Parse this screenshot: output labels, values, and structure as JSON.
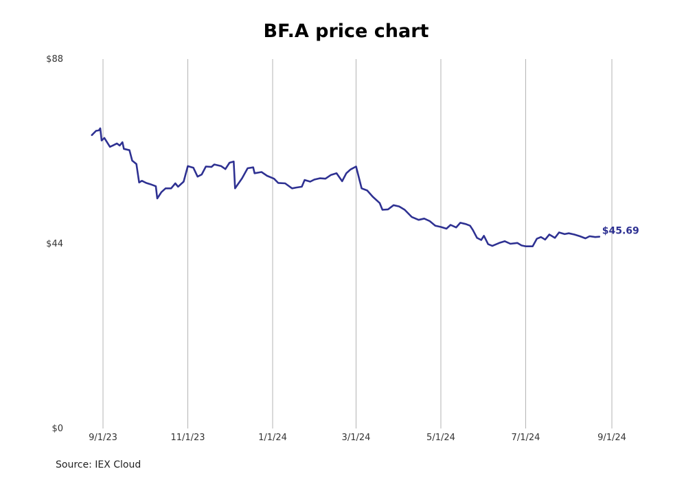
{
  "chart_data": {
    "type": "line",
    "title": "BF.A price chart",
    "source": "Source: IEX Cloud",
    "line_color": "#2e3192",
    "y_range": [
      0,
      88
    ],
    "y_ticks": [
      {
        "value": 0,
        "label": "$0"
      },
      {
        "value": 44,
        "label": "$44"
      },
      {
        "value": 88,
        "label": "$88"
      }
    ],
    "x_range": [
      "2023-08-24",
      "2024-09-01"
    ],
    "x_ticks": [
      {
        "date": "2023-09-01",
        "label": "9/1/23"
      },
      {
        "date": "2023-11-01",
        "label": "11/1/23"
      },
      {
        "date": "2024-01-01",
        "label": "1/1/24"
      },
      {
        "date": "2024-03-01",
        "label": "3/1/24"
      },
      {
        "date": "2024-05-01",
        "label": "5/1/24"
      },
      {
        "date": "2024-07-01",
        "label": "7/1/24"
      },
      {
        "date": "2024-09-01",
        "label": "9/1/24"
      }
    ],
    "last_value_label": "$45.69",
    "grid": "vertical",
    "series": [
      {
        "points": [
          [
            "2023-08-24",
            69.9
          ],
          [
            "2023-08-27",
            70.9
          ],
          [
            "2023-08-29",
            71.0
          ],
          [
            "2023-08-30",
            71.5
          ],
          [
            "2023-08-31",
            68.6
          ],
          [
            "2023-09-02",
            69.2
          ],
          [
            "2023-09-06",
            67.1
          ],
          [
            "2023-09-08",
            67.4
          ],
          [
            "2023-09-11",
            67.9
          ],
          [
            "2023-09-13",
            67.4
          ],
          [
            "2023-09-15",
            68.2
          ],
          [
            "2023-09-16",
            66.6
          ],
          [
            "2023-09-20",
            66.3
          ],
          [
            "2023-09-22",
            63.8
          ],
          [
            "2023-09-25",
            63.0
          ],
          [
            "2023-09-27",
            58.6
          ],
          [
            "2023-09-29",
            59.0
          ],
          [
            "2023-10-02",
            58.5
          ],
          [
            "2023-10-05",
            58.2
          ],
          [
            "2023-10-09",
            57.7
          ],
          [
            "2023-10-10",
            54.8
          ],
          [
            "2023-10-13",
            56.3
          ],
          [
            "2023-10-16",
            57.2
          ],
          [
            "2023-10-20",
            57.2
          ],
          [
            "2023-10-23",
            58.4
          ],
          [
            "2023-10-25",
            57.6
          ],
          [
            "2023-10-29",
            58.8
          ],
          [
            "2023-11-01",
            62.5
          ],
          [
            "2023-11-03",
            62.3
          ],
          [
            "2023-11-05",
            62.1
          ],
          [
            "2023-11-08",
            60.0
          ],
          [
            "2023-11-11",
            60.5
          ],
          [
            "2023-11-14",
            62.4
          ],
          [
            "2023-11-18",
            62.3
          ],
          [
            "2023-11-20",
            62.9
          ],
          [
            "2023-11-25",
            62.5
          ],
          [
            "2023-11-28",
            61.8
          ],
          [
            "2023-12-01",
            63.3
          ],
          [
            "2023-12-04",
            63.6
          ],
          [
            "2023-12-05",
            57.2
          ],
          [
            "2023-12-10",
            59.6
          ],
          [
            "2023-12-14",
            62.0
          ],
          [
            "2023-12-18",
            62.2
          ],
          [
            "2023-12-19",
            60.8
          ],
          [
            "2023-12-24",
            61.1
          ],
          [
            "2023-12-28",
            60.2
          ],
          [
            "2024-01-02",
            59.5
          ],
          [
            "2024-01-05",
            58.5
          ],
          [
            "2024-01-10",
            58.4
          ],
          [
            "2024-01-15",
            57.2
          ],
          [
            "2024-01-18",
            57.4
          ],
          [
            "2024-01-22",
            57.6
          ],
          [
            "2024-01-24",
            59.2
          ],
          [
            "2024-01-28",
            58.8
          ],
          [
            "2024-01-31",
            59.3
          ],
          [
            "2024-02-04",
            59.6
          ],
          [
            "2024-02-08",
            59.5
          ],
          [
            "2024-02-12",
            60.4
          ],
          [
            "2024-02-16",
            60.8
          ],
          [
            "2024-02-20",
            58.9
          ],
          [
            "2024-02-23",
            60.8
          ],
          [
            "2024-02-26",
            61.7
          ],
          [
            "2024-03-01",
            62.4
          ],
          [
            "2024-03-05",
            57.2
          ],
          [
            "2024-03-09",
            56.7
          ],
          [
            "2024-03-13",
            55.2
          ],
          [
            "2024-03-18",
            53.7
          ],
          [
            "2024-03-20",
            52.1
          ],
          [
            "2024-03-24",
            52.2
          ],
          [
            "2024-03-28",
            53.2
          ],
          [
            "2024-04-01",
            52.9
          ],
          [
            "2024-04-05",
            52.1
          ],
          [
            "2024-04-10",
            50.4
          ],
          [
            "2024-04-15",
            49.7
          ],
          [
            "2024-04-19",
            50.0
          ],
          [
            "2024-04-23",
            49.4
          ],
          [
            "2024-04-27",
            48.3
          ],
          [
            "2024-05-01",
            48.0
          ],
          [
            "2024-05-05",
            47.6
          ],
          [
            "2024-05-08",
            48.5
          ],
          [
            "2024-05-12",
            47.9
          ],
          [
            "2024-05-15",
            49.0
          ],
          [
            "2024-05-19",
            48.7
          ],
          [
            "2024-05-22",
            48.3
          ],
          [
            "2024-05-24",
            47.3
          ],
          [
            "2024-05-27",
            45.4
          ],
          [
            "2024-05-30",
            44.9
          ],
          [
            "2024-06-01",
            45.9
          ],
          [
            "2024-06-04",
            43.9
          ],
          [
            "2024-06-07",
            43.5
          ],
          [
            "2024-06-12",
            44.2
          ],
          [
            "2024-06-16",
            44.6
          ],
          [
            "2024-06-20",
            44.0
          ],
          [
            "2024-06-25",
            44.2
          ],
          [
            "2024-06-28",
            43.6
          ],
          [
            "2024-07-01",
            43.4
          ],
          [
            "2024-07-06",
            43.4
          ],
          [
            "2024-07-09",
            45.2
          ],
          [
            "2024-07-12",
            45.6
          ],
          [
            "2024-07-15",
            45.0
          ],
          [
            "2024-07-18",
            46.2
          ],
          [
            "2024-07-22",
            45.4
          ],
          [
            "2024-07-25",
            46.7
          ],
          [
            "2024-07-29",
            46.3
          ],
          [
            "2024-08-01",
            46.5
          ],
          [
            "2024-08-05",
            46.2
          ],
          [
            "2024-08-09",
            45.8
          ],
          [
            "2024-08-13",
            45.3
          ],
          [
            "2024-08-16",
            45.8
          ],
          [
            "2024-08-20",
            45.6
          ],
          [
            "2024-08-23",
            45.69
          ]
        ]
      }
    ]
  }
}
